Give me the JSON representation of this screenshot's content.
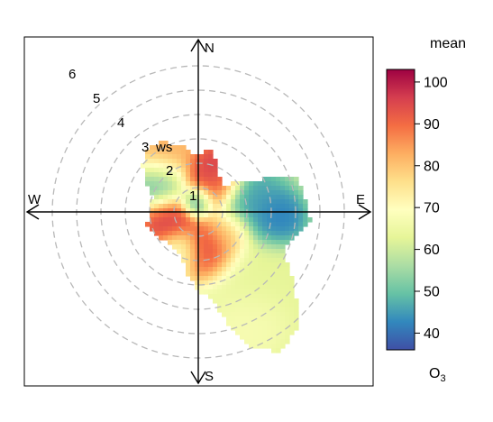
{
  "chart_data": {
    "type": "heatmap",
    "subtype": "polar",
    "directions": [
      "N",
      "E",
      "S",
      "W"
    ],
    "radial_axis": {
      "ticks": [
        1,
        2,
        3,
        4,
        5,
        6
      ],
      "label": "ws"
    },
    "colorbar": {
      "title": "mean",
      "label_main": "O",
      "label_sub": "3",
      "ticks": [
        40,
        50,
        60,
        70,
        80,
        90,
        100
      ],
      "range": [
        36,
        103
      ],
      "colors": [
        "#3f4fa6",
        "#3288bd",
        "#66c2a5",
        "#abdda4",
        "#e6f598",
        "#ffffbf",
        "#fee08b",
        "#fdae61",
        "#f46d43",
        "#d53e4f",
        "#9e0142"
      ]
    },
    "field": {
      "background": 62,
      "radius_limit": 4.2,
      "blobs": [
        {
          "dir": 0,
          "ws": 0.45,
          "value": 37,
          "spread": 0.35
        },
        {
          "dir": 30,
          "ws": 1.1,
          "value": 92,
          "spread": 0.55
        },
        {
          "dir": 20,
          "ws": 1.8,
          "value": 99,
          "spread": 0.6
        },
        {
          "dir": 330,
          "ws": 2.8,
          "value": 84,
          "spread": 0.75
        },
        {
          "dir": 305,
          "ws": 2.0,
          "value": 47,
          "spread": 0.6
        },
        {
          "dir": 255,
          "ws": 1.3,
          "value": 98,
          "spread": 0.6
        },
        {
          "dir": 165,
          "ws": 1.6,
          "value": 98,
          "spread": 0.65
        },
        {
          "dir": 125,
          "ws": 1.5,
          "value": 80,
          "spread": 0.5
        },
        {
          "dir": 80,
          "ws": 2.2,
          "value": 45,
          "spread": 0.75
        },
        {
          "dir": 95,
          "ws": 3.2,
          "value": 40,
          "spread": 0.6
        },
        {
          "dir": 140,
          "ws": 3.6,
          "value": 63,
          "spread": 1.0
        },
        {
          "dir": 155,
          "ws": 4.8,
          "value": 68,
          "spread": 0.8
        },
        {
          "dir": 205,
          "ws": 1.8,
          "value": 67,
          "spread": 0.5
        }
      ]
    },
    "coverage": [
      {
        "dir": 0,
        "ws": 2.3
      },
      {
        "dir": 10,
        "ws": 2.6
      },
      {
        "dir": 20,
        "ws": 2.2
      },
      {
        "dir": 30,
        "ws": 1.7
      },
      {
        "dir": 45,
        "ws": 1.5
      },
      {
        "dir": 60,
        "ws": 2.4
      },
      {
        "dir": 70,
        "ws": 4.3
      },
      {
        "dir": 80,
        "ws": 4.4
      },
      {
        "dir": 95,
        "ws": 4.6
      },
      {
        "dir": 110,
        "ws": 3.8
      },
      {
        "dir": 120,
        "ws": 4.2
      },
      {
        "dir": 130,
        "ws": 5.2
      },
      {
        "dir": 140,
        "ws": 6.3
      },
      {
        "dir": 150,
        "ws": 6.6
      },
      {
        "dir": 160,
        "ws": 5.8
      },
      {
        "dir": 170,
        "ws": 3.7
      },
      {
        "dir": 180,
        "ws": 3.2
      },
      {
        "dir": 200,
        "ws": 1.9
      },
      {
        "dir": 220,
        "ws": 1.7
      },
      {
        "dir": 240,
        "ws": 2.0
      },
      {
        "dir": 255,
        "ws": 2.2
      },
      {
        "dir": 270,
        "ws": 2.0
      },
      {
        "dir": 290,
        "ws": 2.0
      },
      {
        "dir": 310,
        "ws": 3.0
      },
      {
        "dir": 325,
        "ws": 3.4
      },
      {
        "dir": 340,
        "ws": 3.0
      },
      {
        "dir": 350,
        "ws": 2.6
      }
    ]
  }
}
